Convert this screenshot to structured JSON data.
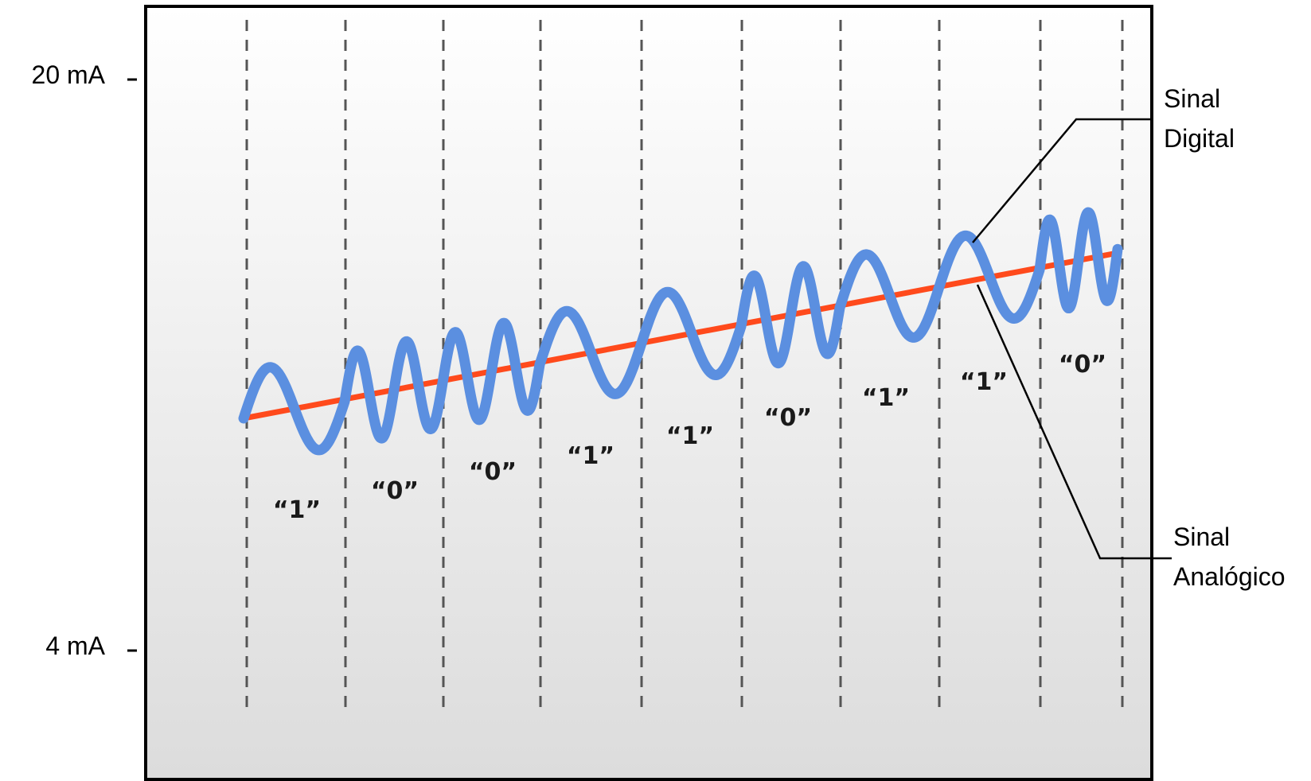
{
  "axis": {
    "top_label": "20 mA",
    "bottom_label": "4 mA"
  },
  "callouts": {
    "digital": {
      "line1": "Sinal",
      "line2": "Digital"
    },
    "analog": {
      "line1": "Sinal",
      "line2": "Analógico"
    }
  },
  "bits": [
    "“1”",
    "“0”",
    "“0”",
    "“1”",
    "“1”",
    "“0”",
    "“1”",
    "“1”",
    "“0”"
  ],
  "colors": {
    "digital_wave": "#5b8fe0",
    "analog_line": "#ff4a1c",
    "frame": "#000000",
    "divider": "#555555"
  }
}
